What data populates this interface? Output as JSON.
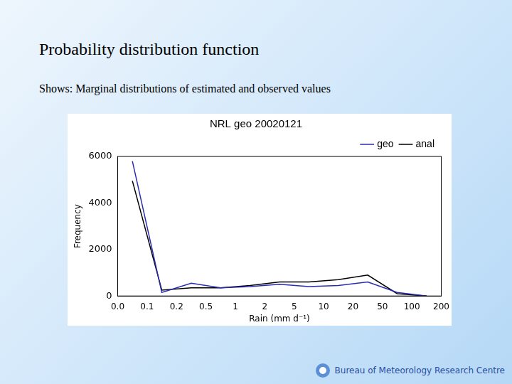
{
  "title": "Probability distribution function",
  "subtitle": "Shows: Marginal distributions of estimated and observed values",
  "footer": "Bureau of Meteorology Research Centre",
  "chart_data": {
    "type": "line",
    "title": "NRL geo 20020121",
    "x_label": "Rain (mm d⁻¹)",
    "y_label": "Frequency",
    "bins": [
      "0.0",
      "0.1",
      "0.2",
      "0.5",
      "1",
      "2",
      "5",
      "10",
      "20",
      "50",
      "100",
      "200"
    ],
    "series": [
      {
        "name": "geo",
        "color": "#2b2bb0",
        "values": [
          5800,
          150,
          550,
          350,
          400,
          500,
          400,
          450,
          600,
          150,
          0
        ]
      },
      {
        "name": "anal",
        "color": "#000000",
        "values": [
          4950,
          250,
          350,
          350,
          450,
          600,
          600,
          700,
          900,
          100,
          0
        ]
      }
    ],
    "ylim": [
      0,
      6000
    ],
    "yticks": [
      0,
      2000,
      4000,
      6000
    ],
    "grid": false,
    "legend": "upper right"
  }
}
